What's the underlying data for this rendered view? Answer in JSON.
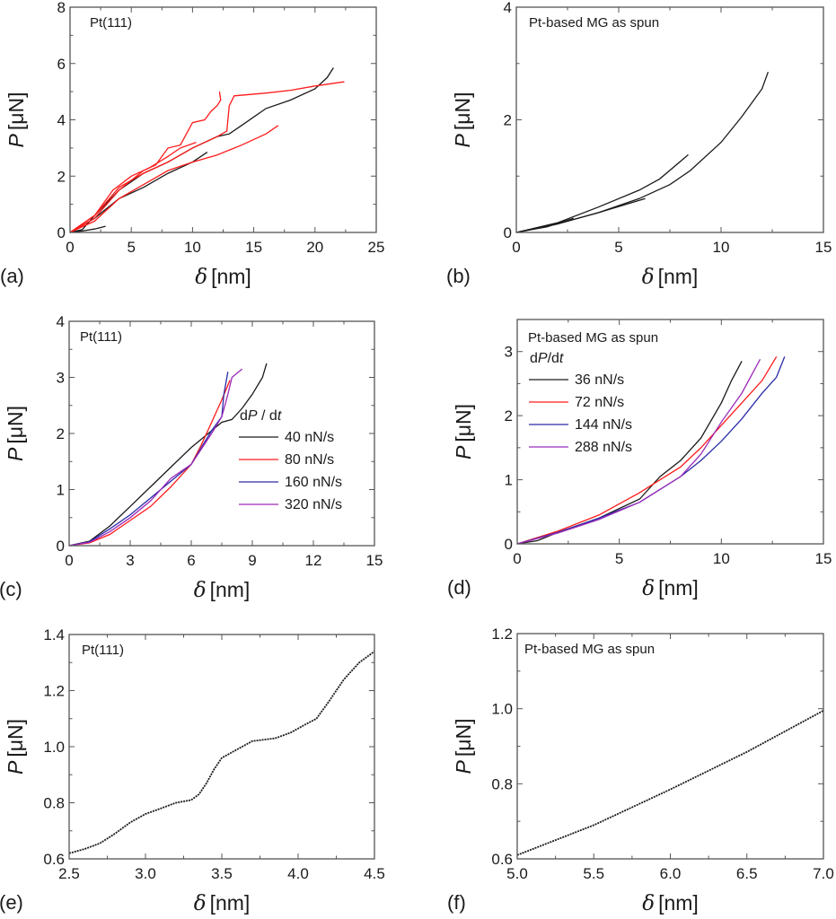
{
  "colors": {
    "black": "#1a1a1a",
    "red": "#ff1a1a",
    "blue": "#2a2aa8",
    "purple": "#9a2ab8",
    "frame": "#555555"
  },
  "chart_data": [
    {
      "panel": "(a)",
      "type": "line",
      "annotation": "Pt(111)",
      "xlabel_symbol": "δ",
      "xlabel_unit": "[nm]",
      "ylabel_symbol": "P",
      "ylabel_unit": "[μN]",
      "xlim": [
        0,
        25
      ],
      "ylim": [
        0,
        8
      ],
      "xticks": [
        "0",
        "5",
        "10",
        "15",
        "20",
        "25"
      ],
      "yticks": [
        "0",
        "2",
        "4",
        "6",
        "8"
      ],
      "grid": false,
      "series": [
        {
          "name": "black-1",
          "color": "black",
          "points": [
            [
              0,
              0
            ],
            [
              1,
              0.1
            ],
            [
              2,
              0.6
            ],
            [
              4,
              1.5
            ],
            [
              6,
              2.1
            ],
            [
              8,
              2.5
            ],
            [
              10,
              3.0
            ],
            [
              12,
              3.4
            ],
            [
              13,
              3.5
            ],
            [
              14,
              3.8
            ],
            [
              16,
              4.4
            ],
            [
              18,
              4.7
            ],
            [
              20,
              5.1
            ],
            [
              21,
              5.5
            ],
            [
              21.5,
              5.85
            ]
          ]
        },
        {
          "name": "black-2",
          "color": "black",
          "points": [
            [
              0,
              0
            ],
            [
              2,
              0.5
            ],
            [
              4,
              1.2
            ],
            [
              6,
              1.6
            ],
            [
              8,
              2.1
            ],
            [
              10,
              2.5
            ],
            [
              11.2,
              2.85
            ]
          ]
        },
        {
          "name": "black-3",
          "color": "black",
          "points": [
            [
              0,
              0
            ],
            [
              1,
              0.05
            ],
            [
              2,
              0.12
            ],
            [
              2.9,
              0.22
            ]
          ]
        },
        {
          "name": "red-1",
          "color": "red",
          "points": [
            [
              0,
              0
            ],
            [
              2,
              0.5
            ],
            [
              4,
              1.5
            ],
            [
              6,
              2.2
            ],
            [
              7,
              2.4
            ],
            [
              8,
              3.0
            ],
            [
              9,
              3.1
            ],
            [
              9.5,
              3.5
            ],
            [
              10,
              3.9
            ],
            [
              11,
              4.0
            ],
            [
              11.5,
              4.3
            ],
            [
              12,
              4.5
            ],
            [
              12.3,
              4.7
            ],
            [
              12.2,
              5.0
            ]
          ]
        },
        {
          "name": "red-2",
          "color": "red",
          "points": [
            [
              0,
              0
            ],
            [
              2,
              0.6
            ],
            [
              4,
              1.6
            ],
            [
              6,
              2.1
            ],
            [
              8,
              2.5
            ],
            [
              10,
              3.0
            ],
            [
              12,
              3.4
            ],
            [
              12.8,
              3.6
            ],
            [
              13,
              4.5
            ],
            [
              13.4,
              4.85
            ],
            [
              16,
              4.95
            ],
            [
              18,
              5.05
            ],
            [
              20,
              5.2
            ],
            [
              22.4,
              5.35
            ]
          ]
        },
        {
          "name": "red-3",
          "color": "red",
          "points": [
            [
              0,
              0
            ],
            [
              2,
              0.4
            ],
            [
              4,
              1.2
            ],
            [
              6,
              1.7
            ],
            [
              8,
              2.2
            ],
            [
              10,
              2.5
            ],
            [
              12,
              2.75
            ],
            [
              14,
              3.1
            ],
            [
              16,
              3.5
            ],
            [
              17,
              3.8
            ]
          ]
        },
        {
          "name": "red-4",
          "color": "red",
          "points": [
            [
              0,
              0
            ],
            [
              2,
              0.6
            ],
            [
              3.5,
              1.5
            ],
            [
              5,
              2.0
            ],
            [
              6.5,
              2.3
            ],
            [
              8,
              2.7
            ],
            [
              9,
              3.0
            ],
            [
              10.3,
              3.2
            ]
          ]
        }
      ]
    },
    {
      "panel": "(b)",
      "type": "line",
      "annotation": "Pt-based MG as spun",
      "xlabel_symbol": "δ",
      "xlabel_unit": "[nm]",
      "ylabel_symbol": "P",
      "ylabel_unit": "[μN]",
      "xlim": [
        0,
        15
      ],
      "ylim": [
        0,
        4
      ],
      "xticks": [
        "0",
        "5",
        "10",
        "15"
      ],
      "yticks": [
        "0",
        "2",
        "4"
      ],
      "grid": false,
      "series": [
        {
          "name": "black-1",
          "color": "black",
          "points": [
            [
              0,
              0
            ],
            [
              2,
              0.15
            ],
            [
              4,
              0.35
            ],
            [
              6,
              0.6
            ],
            [
              7.5,
              0.85
            ],
            [
              8.5,
              1.1
            ],
            [
              10,
              1.6
            ],
            [
              11,
              2.05
            ],
            [
              12,
              2.55
            ],
            [
              12.3,
              2.85
            ]
          ]
        },
        {
          "name": "black-2",
          "color": "black",
          "points": [
            [
              0,
              0
            ],
            [
              2,
              0.17
            ],
            [
              4,
              0.45
            ],
            [
              6,
              0.75
            ],
            [
              7,
              0.95
            ],
            [
              8.4,
              1.38
            ]
          ]
        },
        {
          "name": "black-3",
          "color": "black",
          "points": [
            [
              0,
              0
            ],
            [
              2,
              0.15
            ],
            [
              4,
              0.35
            ],
            [
              6.3,
              0.6
            ]
          ]
        },
        {
          "name": "black-4",
          "color": "black",
          "points": [
            [
              0,
              0
            ],
            [
              1.5,
              0.1
            ],
            [
              2.8,
              0.25
            ]
          ]
        }
      ]
    },
    {
      "panel": "(c)",
      "type": "line",
      "annotation": "Pt(111)",
      "xlabel_symbol": "δ",
      "xlabel_unit": "[nm]",
      "ylabel_symbol": "P",
      "ylabel_unit": "[μN]",
      "xlim": [
        0,
        15
      ],
      "ylim": [
        0,
        4
      ],
      "xticks": [
        "0",
        "3",
        "6",
        "9",
        "12",
        "15"
      ],
      "yticks": [
        "0",
        "1",
        "2",
        "3",
        "4"
      ],
      "grid": false,
      "legend_title": [
        "d",
        "P",
        " / d",
        "t"
      ],
      "series": [
        {
          "name": "40 nN/s",
          "color": "black",
          "points": [
            [
              0,
              0
            ],
            [
              1,
              0.08
            ],
            [
              2,
              0.35
            ],
            [
              3,
              0.7
            ],
            [
              4,
              1.05
            ],
            [
              5,
              1.4
            ],
            [
              6,
              1.75
            ],
            [
              7,
              2.05
            ],
            [
              7.5,
              2.2
            ],
            [
              8,
              2.25
            ],
            [
              8.5,
              2.45
            ],
            [
              9,
              2.7
            ],
            [
              9.5,
              3.0
            ],
            [
              9.7,
              3.25
            ]
          ]
        },
        {
          "name": "80 nN/s",
          "color": "red",
          "points": [
            [
              0,
              0
            ],
            [
              1,
              0.05
            ],
            [
              2,
              0.2
            ],
            [
              3,
              0.45
            ],
            [
              4,
              0.7
            ],
            [
              5,
              1.05
            ],
            [
              6,
              1.45
            ],
            [
              6.5,
              1.8
            ],
            [
              7,
              2.2
            ],
            [
              7.5,
              2.6
            ],
            [
              7.9,
              2.95
            ]
          ]
        },
        {
          "name": "160 nN/s",
          "color": "blue",
          "points": [
            [
              0,
              0
            ],
            [
              1,
              0.07
            ],
            [
              2,
              0.3
            ],
            [
              3,
              0.55
            ],
            [
              4,
              0.85
            ],
            [
              5,
              1.15
            ],
            [
              6,
              1.45
            ],
            [
              6.5,
              1.75
            ],
            [
              7,
              2.05
            ],
            [
              7.5,
              2.3
            ],
            [
              7.6,
              2.7
            ],
            [
              7.8,
              3.1
            ]
          ]
        },
        {
          "name": "320 nN/s",
          "color": "purple",
          "points": [
            [
              0,
              0
            ],
            [
              1,
              0.06
            ],
            [
              2,
              0.25
            ],
            [
              3,
              0.5
            ],
            [
              4,
              0.8
            ],
            [
              5,
              1.2
            ],
            [
              6,
              1.45
            ],
            [
              7,
              2.0
            ],
            [
              7.5,
              2.3
            ],
            [
              7.8,
              2.7
            ],
            [
              8,
              3.0
            ],
            [
              8.5,
              3.15
            ]
          ]
        }
      ]
    },
    {
      "panel": "(d)",
      "type": "line",
      "annotation": "Pt-based MG as spun",
      "xlabel_symbol": "δ",
      "xlabel_unit": "[nm]",
      "ylabel_symbol": "P",
      "ylabel_unit": "[μN]",
      "xlim": [
        0,
        15
      ],
      "ylim": [
        0,
        3.5
      ],
      "xticks": [
        "0",
        "5",
        "10",
        "15"
      ],
      "yticks": [
        "0",
        "1",
        "2",
        "3"
      ],
      "grid": false,
      "legend_title": [
        "d",
        "P",
        "/d",
        "t"
      ],
      "series": [
        {
          "name": "36 nN/s",
          "color": "black",
          "points": [
            [
              0,
              0
            ],
            [
              1,
              0.05
            ],
            [
              2,
              0.18
            ],
            [
              4,
              0.4
            ],
            [
              6,
              0.7
            ],
            [
              7,
              1.05
            ],
            [
              8,
              1.3
            ],
            [
              9,
              1.65
            ],
            [
              10,
              2.2
            ],
            [
              10.5,
              2.55
            ],
            [
              11,
              2.85
            ]
          ]
        },
        {
          "name": "72 nN/s",
          "color": "red",
          "points": [
            [
              0,
              0
            ],
            [
              2,
              0.2
            ],
            [
              4,
              0.45
            ],
            [
              6,
              0.8
            ],
            [
              7,
              1.0
            ],
            [
              8,
              1.2
            ],
            [
              9,
              1.5
            ],
            [
              10,
              1.85
            ],
            [
              11,
              2.2
            ],
            [
              12,
              2.55
            ],
            [
              12.7,
              2.92
            ]
          ]
        },
        {
          "name": "144 nN/s",
          "color": "blue",
          "points": [
            [
              0,
              0
            ],
            [
              2,
              0.18
            ],
            [
              4,
              0.4
            ],
            [
              6,
              0.65
            ],
            [
              8,
              1.05
            ],
            [
              9,
              1.3
            ],
            [
              10,
              1.6
            ],
            [
              11,
              1.95
            ],
            [
              12,
              2.35
            ],
            [
              12.7,
              2.6
            ],
            [
              13.1,
              2.92
            ]
          ]
        },
        {
          "name": "288 nN/s",
          "color": "purple",
          "points": [
            [
              0,
              0
            ],
            [
              2,
              0.17
            ],
            [
              4,
              0.38
            ],
            [
              6,
              0.65
            ],
            [
              8,
              1.05
            ],
            [
              9,
              1.4
            ],
            [
              10,
              1.9
            ],
            [
              11,
              2.35
            ],
            [
              11.9,
              2.88
            ]
          ]
        }
      ]
    },
    {
      "panel": "(e)",
      "type": "scatter",
      "annotation": "Pt(111)",
      "xlabel_symbol": "δ",
      "xlabel_unit": "[nm]",
      "ylabel_symbol": "P",
      "ylabel_unit": "[μN]",
      "xlim": [
        2.5,
        4.5
      ],
      "ylim": [
        0.6,
        1.4
      ],
      "xticks": [
        "2.5",
        "3.0",
        "3.5",
        "4.0",
        "4.5"
      ],
      "yticks": [
        "0.6",
        "0.8",
        "1.0",
        "1.2",
        "1.4"
      ],
      "grid": false,
      "series": [
        {
          "name": "data",
          "color": "black",
          "points": [
            [
              2.5,
              0.62
            ],
            [
              2.6,
              0.635
            ],
            [
              2.7,
              0.655
            ],
            [
              2.8,
              0.69
            ],
            [
              2.9,
              0.73
            ],
            [
              3.0,
              0.76
            ],
            [
              3.1,
              0.78
            ],
            [
              3.2,
              0.8
            ],
            [
              3.3,
              0.81
            ],
            [
              3.35,
              0.83
            ],
            [
              3.4,
              0.87
            ],
            [
              3.45,
              0.92
            ],
            [
              3.5,
              0.96
            ],
            [
              3.6,
              0.99
            ],
            [
              3.7,
              1.02
            ],
            [
              3.85,
              1.03
            ],
            [
              3.95,
              1.05
            ],
            [
              4.05,
              1.08
            ],
            [
              4.12,
              1.1
            ],
            [
              4.2,
              1.16
            ],
            [
              4.3,
              1.24
            ],
            [
              4.4,
              1.3
            ],
            [
              4.5,
              1.34
            ]
          ]
        }
      ]
    },
    {
      "panel": "(f)",
      "type": "scatter",
      "annotation": "Pt-based MG as spun",
      "xlabel_symbol": "δ",
      "xlabel_unit": "[nm]",
      "ylabel_symbol": "P",
      "ylabel_unit": "[μN]",
      "xlim": [
        5.0,
        7.0
      ],
      "ylim": [
        0.6,
        1.2
      ],
      "xticks": [
        "5.0",
        "5.5",
        "6.0",
        "6.5",
        "7.0"
      ],
      "yticks": [
        "0.6",
        "0.8",
        "1.0",
        "1.2"
      ],
      "grid": false,
      "series": [
        {
          "name": "data",
          "color": "black",
          "points": [
            [
              5,
              0.61
            ],
            [
              5.5,
              0.69
            ],
            [
              6,
              0.785
            ],
            [
              6.5,
              0.885
            ],
            [
              7,
              0.995
            ]
          ]
        }
      ]
    }
  ]
}
